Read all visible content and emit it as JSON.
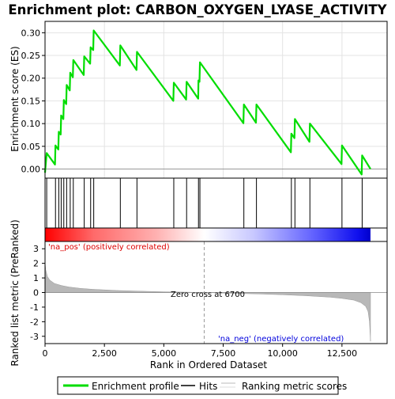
{
  "chart_data": {
    "type": "line",
    "title": "Enrichment plot: CARBON_OXYGEN_LYASE_ACTIVITY",
    "colors": {
      "es_line": "#00dd00",
      "hits": "#000000",
      "metric_fill": "#b8b8b8",
      "pos_color": "#ff0000",
      "neg_color": "#0000ff",
      "zero_line": "#999999"
    },
    "es_panel": {
      "ylabel": "Enrichment score (ES)",
      "ylim": [
        -0.02,
        0.325
      ],
      "yticks": [
        0.0,
        0.05,
        0.1,
        0.15,
        0.2,
        0.25,
        0.3
      ],
      "ytick_labels": [
        "0.00",
        "0.05",
        "0.10",
        "0.15",
        "0.20",
        "0.25",
        "0.30"
      ],
      "grid": true,
      "points": [
        [
          0,
          -0.008
        ],
        [
          70,
          0.035
        ],
        [
          420,
          0.01
        ],
        [
          440,
          0.052
        ],
        [
          560,
          0.043
        ],
        [
          580,
          0.082
        ],
        [
          660,
          0.076
        ],
        [
          680,
          0.118
        ],
        [
          770,
          0.11
        ],
        [
          790,
          0.152
        ],
        [
          890,
          0.143
        ],
        [
          910,
          0.185
        ],
        [
          1040,
          0.173
        ],
        [
          1060,
          0.212
        ],
        [
          1170,
          0.202
        ],
        [
          1190,
          0.24
        ],
        [
          1630,
          0.207
        ],
        [
          1650,
          0.248
        ],
        [
          1900,
          0.232
        ],
        [
          1920,
          0.268
        ],
        [
          2030,
          0.262
        ],
        [
          2050,
          0.305
        ],
        [
          3150,
          0.228
        ],
        [
          3170,
          0.272
        ],
        [
          3850,
          0.218
        ],
        [
          3870,
          0.258
        ],
        [
          5400,
          0.15
        ],
        [
          5420,
          0.19
        ],
        [
          5940,
          0.153
        ],
        [
          5960,
          0.192
        ],
        [
          6450,
          0.155
        ],
        [
          6460,
          0.195
        ],
        [
          6500,
          0.192
        ],
        [
          6520,
          0.235
        ],
        [
          8350,
          0.101
        ],
        [
          8370,
          0.142
        ],
        [
          8880,
          0.102
        ],
        [
          8900,
          0.142
        ],
        [
          10350,
          0.037
        ],
        [
          10370,
          0.078
        ],
        [
          10500,
          0.068
        ],
        [
          10520,
          0.11
        ],
        [
          11130,
          0.06
        ],
        [
          11150,
          0.1
        ],
        [
          12480,
          0.011
        ],
        [
          12500,
          0.052
        ],
        [
          13330,
          -0.012
        ],
        [
          13350,
          0.03
        ],
        [
          13700,
          0.0
        ]
      ]
    },
    "hits_x": [
      70,
      440,
      580,
      680,
      790,
      910,
      1060,
      1190,
      1650,
      1920,
      2050,
      3170,
      3870,
      5420,
      5960,
      6460,
      6520,
      8370,
      8900,
      10370,
      10520,
      11150,
      12500,
      13350
    ],
    "metric_panel": {
      "ylabel": "Ranked list metric (PreRanked)",
      "ylim": [
        -3.5,
        3.5
      ],
      "yticks": [
        -3,
        -2,
        -1,
        0,
        1,
        2,
        3
      ],
      "ytick_labels": [
        "-3",
        "-2",
        "-1",
        "0",
        "1",
        "2",
        "3"
      ],
      "curve": [
        [
          0,
          2.1
        ],
        [
          30,
          1.55
        ],
        [
          100,
          1.1
        ],
        [
          200,
          0.85
        ],
        [
          400,
          0.62
        ],
        [
          700,
          0.48
        ],
        [
          1000,
          0.38
        ],
        [
          1500,
          0.28
        ],
        [
          2000,
          0.22
        ],
        [
          3000,
          0.14
        ],
        [
          4000,
          0.09
        ],
        [
          5000,
          0.05
        ],
        [
          6000,
          0.02
        ],
        [
          6700,
          0.0
        ],
        [
          8000,
          -0.06
        ],
        [
          9000,
          -0.1
        ],
        [
          10000,
          -0.15
        ],
        [
          11000,
          -0.22
        ],
        [
          12000,
          -0.32
        ],
        [
          12500,
          -0.4
        ],
        [
          13000,
          -0.52
        ],
        [
          13300,
          -0.7
        ],
        [
          13500,
          -0.95
        ],
        [
          13600,
          -1.3
        ],
        [
          13660,
          -2.0
        ],
        [
          13700,
          -3.35
        ]
      ],
      "zero_cross_label": "Zero cross at 6700",
      "pos_label": "'na_pos' (positively correlated)",
      "neg_label": "'na_neg' (negatively correlated)"
    },
    "x_axis": {
      "xlabel": "Rank in Ordered Dataset",
      "xlim": [
        0,
        14400
      ],
      "xticks": [
        0,
        2500,
        5000,
        7500,
        10000,
        12500
      ],
      "xtick_labels": [
        "0",
        "2,500",
        "5,000",
        "7,500",
        "10,000",
        "12,500"
      ],
      "n_genes": 13700
    },
    "legend": {
      "placement": "bottom",
      "items": [
        {
          "label": "Enrichment profile",
          "kind": "es"
        },
        {
          "label": "Hits",
          "kind": "hits"
        },
        {
          "label": "Ranking metric scores",
          "kind": "metric"
        }
      ]
    }
  }
}
